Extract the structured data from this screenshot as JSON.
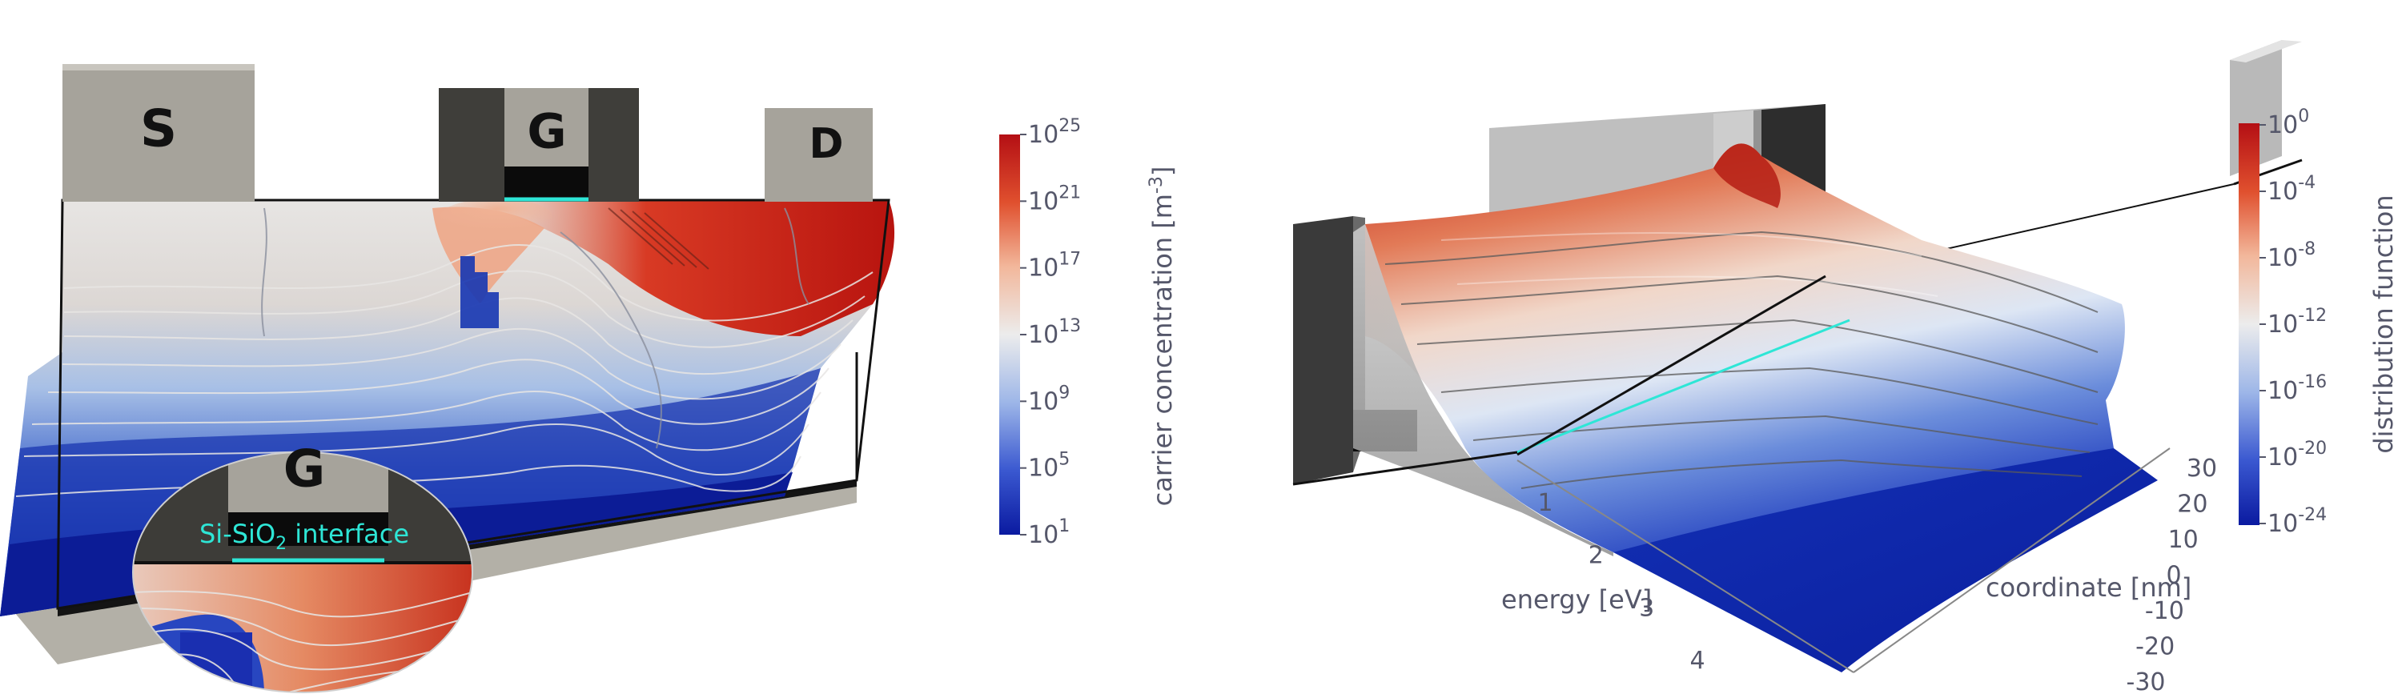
{
  "left": {
    "contacts": {
      "source": "S",
      "gate": "G",
      "drain": "D"
    },
    "inset": {
      "gate": "G",
      "interface_label_pre": "Si-SiO",
      "interface_label_sub": "2",
      "interface_label_post": " interface"
    },
    "colorbar": {
      "label_pre": "carrier concentration [m",
      "label_sup": "-3",
      "label_post": "]",
      "ticks": [
        {
          "base": "10",
          "exp": "25",
          "value": 25
        },
        {
          "base": "10",
          "exp": "21",
          "value": 21
        },
        {
          "base": "10",
          "exp": "17",
          "value": 17
        },
        {
          "base": "10",
          "exp": "13",
          "value": 13
        },
        {
          "base": "10",
          "exp": "9",
          "value": 9
        },
        {
          "base": "10",
          "exp": "5",
          "value": 5
        },
        {
          "base": "10",
          "exp": "1",
          "value": 1
        }
      ],
      "range": [
        1,
        25
      ],
      "scale": "log"
    }
  },
  "right": {
    "colorbar": {
      "label": "distribution function",
      "ticks": [
        {
          "base": "10",
          "exp": "0",
          "value": 0
        },
        {
          "base": "10",
          "exp": "-4",
          "value": -4
        },
        {
          "base": "10",
          "exp": "-8",
          "value": -8
        },
        {
          "base": "10",
          "exp": "-12",
          "value": -12
        },
        {
          "base": "10",
          "exp": "-16",
          "value": -16
        },
        {
          "base": "10",
          "exp": "-20",
          "value": -20
        },
        {
          "base": "10",
          "exp": "-24",
          "value": -24
        }
      ],
      "range": [
        -24,
        0
      ],
      "scale": "log"
    },
    "energy_axis": {
      "label": "energy [eV]",
      "ticks": [
        "1",
        "2",
        "3",
        "4"
      ]
    },
    "coordinate_axis": {
      "label": "coordinate [nm]",
      "ticks": [
        "30",
        "20",
        "10",
        "0",
        "-10",
        "-20",
        "-30"
      ]
    }
  },
  "colors": {
    "contact_light": "#a6a39b",
    "contact_dark": "#3f3e3a",
    "interface": "#2ee6d6",
    "high": "#b40f14",
    "mid": "#ededed",
    "low": "#0a1aa0"
  }
}
